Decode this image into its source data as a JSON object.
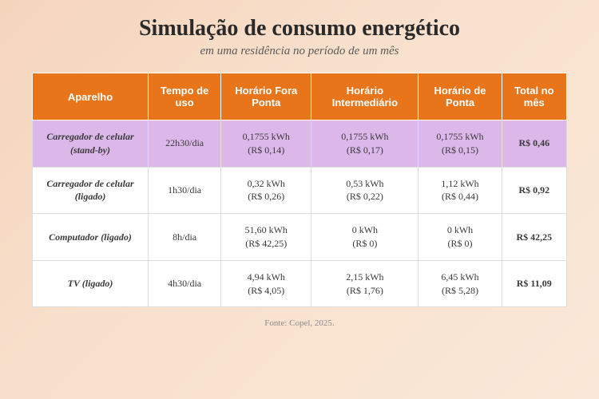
{
  "title": "Simulação de consumo energético",
  "subtitle": "em uma residência no período de um mês",
  "source": "Fonte: Copel, 2025.",
  "header_bg": "#e8751a",
  "highlight_row_bg": "#dcb8ea",
  "normal_row_bg": "#ffffff",
  "columns": [
    "Aparelho",
    "Tempo de uso",
    "Horário Fora Ponta",
    "Horário Intermediário",
    "Horário de Ponta",
    "Total no mês"
  ],
  "rows": [
    {
      "highlight": true,
      "device": "Carregador de celular (stand-by)",
      "time": "22h30/dia",
      "fora": "0,1755 kWh (R$ 0,14)",
      "inter": "0,1755 kWh (R$ 0,17)",
      "ponta": "0,1755 kWh (R$ 0,15)",
      "total": "R$ 0,46"
    },
    {
      "highlight": false,
      "device": "Carregador de celular (ligado)",
      "time": "1h30/dia",
      "fora": "0,32 kWh (R$ 0,26)",
      "inter": "0,53 kWh (R$ 0,22)",
      "ponta": "1,12 kWh (R$ 0,44)",
      "total": "R$ 0,92"
    },
    {
      "highlight": false,
      "device": "Computador (ligado)",
      "time": "8h/dia",
      "fora": "51,60 kWh (R$ 42,25)",
      "inter": "0 kWh (R$ 0)",
      "ponta": "0 kWh (R$ 0)",
      "total": "R$ 42,25"
    },
    {
      "highlight": false,
      "device": "TV (ligado)",
      "time": "4h30/dia",
      "fora": "4,94 kWh (R$  4,05)",
      "inter": "2,15 kWh (R$  1,76)",
      "ponta": "6,45 kWh (R$ 5,28)",
      "total": "R$ 11,09"
    }
  ]
}
